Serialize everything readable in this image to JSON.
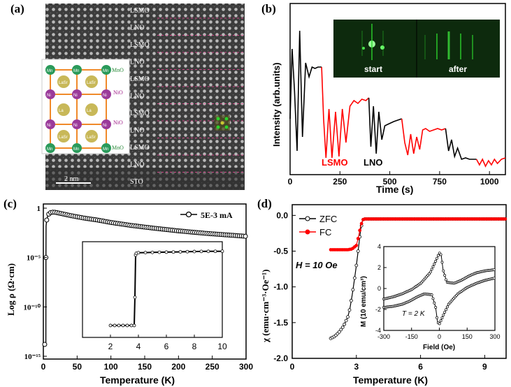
{
  "panel_labels": {
    "a": "(a)",
    "b": "(b)",
    "c": "(c)",
    "d": "(d)"
  },
  "colors": {
    "red": "#ff0000",
    "black": "#000000",
    "rheed_green": "#2bd12b"
  },
  "panel_a": {
    "layer_labels": [
      "LSMO",
      "LNO",
      "LSMO",
      "LNO",
      "LSMO",
      "LNO",
      "LSMO",
      "LNO",
      "LSMO",
      "LNO",
      "STO"
    ],
    "scale_bar": "2 nm",
    "inset_labels": {
      "mno_top": "MnO",
      "nio_1": "NiO",
      "nio_2": "NiO",
      "mno_bot": "MnO",
      "mn": "Mn",
      "ni": "Ni",
      "la_sr": "LaSr",
      "la": "La"
    }
  },
  "chart_data": [
    {
      "id": "b",
      "type": "line",
      "xlabel": "Time (s)",
      "ylabel": "Intensity (arb.units)",
      "xlim": [
        0,
        1080
      ],
      "xticks": [
        0,
        250,
        500,
        750,
        1000
      ],
      "annotations": [
        "LSMO",
        "LNO"
      ],
      "inset_labels": [
        "start",
        "after"
      ],
      "series": [
        {
          "color": "#000000",
          "x": [
            0,
            10,
            22,
            35,
            48,
            62,
            78,
            95,
            110,
            125,
            140,
            158
          ],
          "y": [
            0.35,
            0.85,
            0.55,
            0.12,
            0.98,
            0.22,
            0.75,
            0.65,
            0.72,
            0.71,
            0.72,
            0.72
          ]
        },
        {
          "color": "#ff0000",
          "x": [
            158,
            168,
            180,
            195,
            210,
            228,
            245,
            262,
            280,
            300,
            320,
            340,
            360,
            380,
            395
          ],
          "y": [
            0.72,
            0.35,
            0.07,
            0.42,
            0.07,
            0.4,
            0.08,
            0.42,
            0.18,
            0.44,
            0.48,
            0.46,
            0.49,
            0.48,
            0.5
          ]
        },
        {
          "color": "#000000",
          "x": [
            395,
            405,
            418,
            432,
            445,
            460,
            475,
            490,
            505,
            520,
            540,
            560
          ],
          "y": [
            0.5,
            0.15,
            0.44,
            0.1,
            0.4,
            0.2,
            0.3,
            0.31,
            0.32,
            0.33,
            0.34,
            0.35
          ]
        },
        {
          "color": "#ff0000",
          "x": [
            560,
            575,
            590,
            605,
            620,
            635,
            650,
            665,
            680,
            700,
            720,
            740,
            760,
            780
          ],
          "y": [
            0.35,
            0.18,
            0.09,
            0.24,
            0.1,
            0.22,
            0.13,
            0.27,
            0.28,
            0.26,
            0.27,
            0.28,
            0.27,
            0.28
          ]
        },
        {
          "color": "#000000",
          "x": [
            780,
            795,
            810,
            825,
            840,
            860,
            880,
            900,
            920,
            935
          ],
          "y": [
            0.28,
            0.12,
            0.2,
            0.08,
            0.14,
            0.06,
            0.07,
            0.06,
            0.06,
            0.06
          ]
        },
        {
          "color": "#ff0000",
          "x": [
            935,
            950,
            965,
            980,
            995,
            1010,
            1025,
            1040,
            1060,
            1080
          ],
          "y": [
            0.06,
            0.02,
            0.06,
            0.01,
            0.05,
            0.02,
            0.06,
            0.03,
            0.06,
            0.07
          ]
        }
      ]
    },
    {
      "id": "c",
      "type": "line",
      "xlabel": "Temperature (K)",
      "ylabel": "Log ρ (Ω·cm)",
      "xlim": [
        0,
        300
      ],
      "xticks": [
        0,
        50,
        100,
        150,
        200,
        250,
        300
      ],
      "ylog": true,
      "ylim_exp": [
        -15,
        0
      ],
      "yticks": [
        {
          "exp": -15,
          "label": "10⁻¹⁵"
        },
        {
          "exp": -10,
          "label": "10⁻¹⁰"
        },
        {
          "exp": -5,
          "label": "10⁻⁵"
        },
        {
          "exp": 0,
          "label": "1"
        }
      ],
      "legend": "5E-3 mA",
      "legend_position": "top-right",
      "series": [
        {
          "name": "5E-3 mA",
          "color": "#000000",
          "x": [
            2,
            2.5,
            3,
            3.5,
            3.7,
            3.8,
            4,
            5,
            6,
            8,
            10,
            15,
            20,
            30,
            40,
            60,
            80,
            100,
            130,
            160,
            200,
            240,
            280,
            300
          ],
          "y_exp": [
            -13.8,
            -13.8,
            -13.8,
            -13.8,
            -13.8,
            -5.0,
            -1.8,
            -1.2,
            -0.9,
            -0.6,
            -0.45,
            -0.4,
            -0.45,
            -0.6,
            -0.75,
            -1.0,
            -1.2,
            -1.45,
            -1.75,
            -2.0,
            -2.3,
            -2.55,
            -2.75,
            -2.85
          ]
        }
      ],
      "inset": {
        "xlim": [
          0,
          10
        ],
        "xticks": [
          2,
          4,
          6,
          8,
          10
        ],
        "x": [
          2,
          2.3,
          2.6,
          2.9,
          3.2,
          3.5,
          3.7,
          3.75,
          3.8,
          3.85,
          4,
          4.5,
          5,
          5.5,
          6,
          6.5,
          7,
          7.5,
          8,
          8.5,
          9,
          9.5,
          10
        ],
        "y_exp": [
          -13.8,
          -13.8,
          -13.8,
          -13.8,
          -13.8,
          -13.8,
          -13.8,
          -9,
          -1.8,
          -1.5,
          -1.4,
          -1.38,
          -1.35,
          -1.32,
          -1.3,
          -1.28,
          -1.25,
          -1.22,
          -1.2,
          -1.18,
          -1.17,
          -1.16,
          -1.15
        ]
      }
    },
    {
      "id": "d",
      "type": "scatter",
      "xlabel": "Temperature (K)",
      "ylabel": "χ (emu·cm⁻³·Oe⁻¹)",
      "xlim": [
        0,
        10
      ],
      "ylim": [
        -2.0,
        0.15
      ],
      "xticks": [
        0,
        3,
        6,
        9
      ],
      "yticks": [
        -2.0,
        -1.5,
        -1.0,
        -0.5,
        0.0
      ],
      "legend_position": "top-left",
      "annotation": "H = 10 Oe",
      "series": [
        {
          "name": "ZFC",
          "color": "#000000",
          "x": [
            1.8,
            2.0,
            2.2,
            2.4,
            2.6,
            2.7,
            2.8,
            2.9,
            3.0,
            3.1,
            3.2,
            3.3,
            3.4,
            3.6,
            4,
            5,
            6,
            7,
            8,
            9,
            10
          ],
          "y": [
            -1.72,
            -1.69,
            -1.63,
            -1.55,
            -1.42,
            -1.3,
            -1.12,
            -0.92,
            -0.7,
            -0.45,
            -0.2,
            -0.06,
            -0.05,
            -0.05,
            -0.05,
            -0.05,
            -0.05,
            -0.05,
            -0.05,
            -0.05,
            -0.05
          ]
        },
        {
          "name": "FC",
          "color": "#ff0000",
          "x": [
            1.8,
            2.0,
            2.2,
            2.4,
            2.6,
            2.8,
            3.0,
            3.1,
            3.2,
            3.3,
            3.4,
            3.6,
            4,
            5,
            6,
            7,
            8,
            9,
            10
          ],
          "y": [
            -0.48,
            -0.48,
            -0.48,
            -0.48,
            -0.48,
            -0.47,
            -0.42,
            -0.3,
            -0.15,
            -0.06,
            -0.05,
            -0.05,
            -0.05,
            -0.05,
            -0.05,
            -0.05,
            -0.05,
            -0.05,
            -0.05
          ]
        }
      ],
      "inset": {
        "xlabel": "Field (Oe)",
        "ylabel": "M (10 emu/cm³)",
        "annotation": "T = 2 K",
        "xlim": [
          -300,
          300
        ],
        "ylim": [
          -4,
          4
        ],
        "xticks": [
          -300,
          -150,
          0,
          150,
          300
        ],
        "yticks": [
          -4,
          -2,
          0,
          2,
          4
        ],
        "upper_x": [
          -300,
          -250,
          -200,
          -150,
          -100,
          -50,
          -20,
          0,
          10,
          20,
          40,
          80,
          120,
          160,
          200,
          250,
          300
        ],
        "upper_y": [
          -1.0,
          -0.8,
          -0.5,
          -0.1,
          0.5,
          1.5,
          2.6,
          3.4,
          3.2,
          1.8,
          0.6,
          0.5,
          0.8,
          1.2,
          1.5,
          1.7,
          1.8
        ],
        "lower_x": [
          -300,
          -250,
          -200,
          -160,
          -120,
          -80,
          -40,
          -20,
          -10,
          0,
          20,
          50,
          100,
          150,
          200,
          250,
          300
        ],
        "lower_y": [
          -1.8,
          -1.7,
          -1.5,
          -1.2,
          -0.8,
          -0.5,
          -0.6,
          -1.8,
          -3.2,
          -3.4,
          -2.6,
          -1.5,
          -0.5,
          0.1,
          0.5,
          0.8,
          1.0
        ]
      }
    }
  ]
}
